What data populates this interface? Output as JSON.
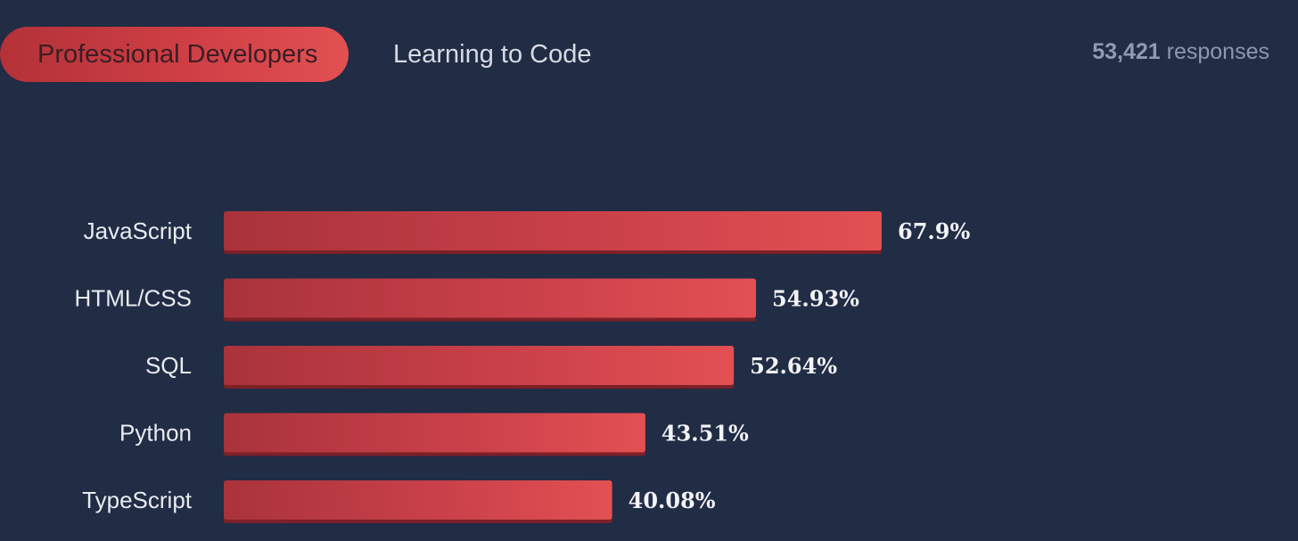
{
  "tabs": [
    {
      "label": "Professional Developers",
      "active": true
    },
    {
      "label": "Learning to Code",
      "active": false
    }
  ],
  "responses": {
    "count": "53,421",
    "label": "responses"
  },
  "colors": {
    "background": "#212c45",
    "bar_start": "#a9333a",
    "bar_end": "#e25052",
    "bar_shadow": "#7d2027"
  },
  "chart_data": {
    "type": "bar",
    "orientation": "horizontal",
    "categories": [
      "JavaScript",
      "HTML/CSS",
      "SQL",
      "Python",
      "TypeScript"
    ],
    "values": [
      67.9,
      54.93,
      52.64,
      43.51,
      40.08
    ],
    "value_labels": [
      "67.9%",
      "54.93%",
      "52.64%",
      "43.51%",
      "40.08%"
    ],
    "grid": false
  }
}
